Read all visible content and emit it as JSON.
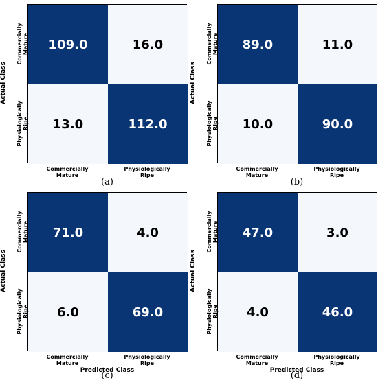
{
  "chart_data": [
    {
      "type": "heatmap",
      "panel_label": "(a)",
      "x_tick_labels": [
        "Commercially Mature",
        "Physiologically Ripe"
      ],
      "y_tick_labels": [
        "Commercially Mature",
        "Physiologically Ripe"
      ],
      "ylabel": "Actual Class",
      "xlabel": "",
      "values": [
        [
          "109.0",
          "16.0"
        ],
        [
          "13.0",
          "112.0"
        ]
      ]
    },
    {
      "type": "heatmap",
      "panel_label": "(b)",
      "x_tick_labels": [
        "Commercially Mature",
        "Physiologically Ripe"
      ],
      "y_tick_labels": [
        "Commercially Mature",
        "Physiologically Ripe"
      ],
      "ylabel": "Actual Class",
      "xlabel": "",
      "values": [
        [
          "89.0",
          "11.0"
        ],
        [
          "10.0",
          "90.0"
        ]
      ]
    },
    {
      "type": "heatmap",
      "panel_label": "(c)",
      "x_tick_labels": [
        "Commercially Mature",
        "Physiologically Ripe"
      ],
      "y_tick_labels": [
        "Commercially Mature",
        "Physiologically Ripe"
      ],
      "ylabel": "Actual Class",
      "xlabel": "Predicted Class",
      "values": [
        [
          "71.0",
          "4.0"
        ],
        [
          "6.0",
          "69.0"
        ]
      ]
    },
    {
      "type": "heatmap",
      "panel_label": "(d)",
      "x_tick_labels": [
        "Commercially Mature",
        "Physiologically Ripe"
      ],
      "y_tick_labels": [
        "Commercially Mature",
        "Physiologically Ripe"
      ],
      "ylabel": "Actual Class",
      "xlabel": "Predicted Class",
      "values": [
        [
          "47.0",
          "3.0"
        ],
        [
          "4.0",
          "46.0"
        ]
      ]
    }
  ],
  "colors": {
    "high": "#0a3575",
    "low": "#f4f8fd"
  }
}
